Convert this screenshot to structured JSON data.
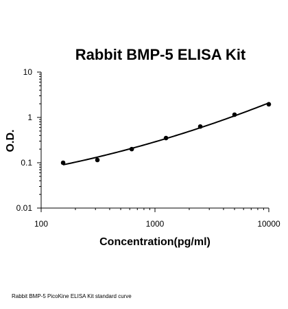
{
  "caption": "Rabbit BMP-5 PicoKine ELISA Kit standard curve",
  "chart_data": {
    "type": "scatter",
    "title": "Rabbit BMP-5 ELISA Kit",
    "xlabel": "Concentration(pg/ml)",
    "ylabel": "O.D.",
    "x_scale": "log",
    "y_scale": "log",
    "xlim": [
      100,
      10000
    ],
    "ylim": [
      0.01,
      10
    ],
    "x_ticks": [
      "100",
      "1000",
      "10000"
    ],
    "y_ticks": [
      "0.01",
      "0.1",
      "1",
      "10"
    ],
    "grid": false,
    "legend": "none",
    "series": [
      {
        "x": [
          156,
          312,
          625,
          1250,
          2500,
          5000,
          10000
        ],
        "y": [
          0.1,
          0.115,
          0.2,
          0.35,
          0.63,
          1.15,
          1.95
        ],
        "fit_curve": true
      }
    ],
    "colors": {
      "points": "#000000",
      "curve": "#000000"
    }
  }
}
